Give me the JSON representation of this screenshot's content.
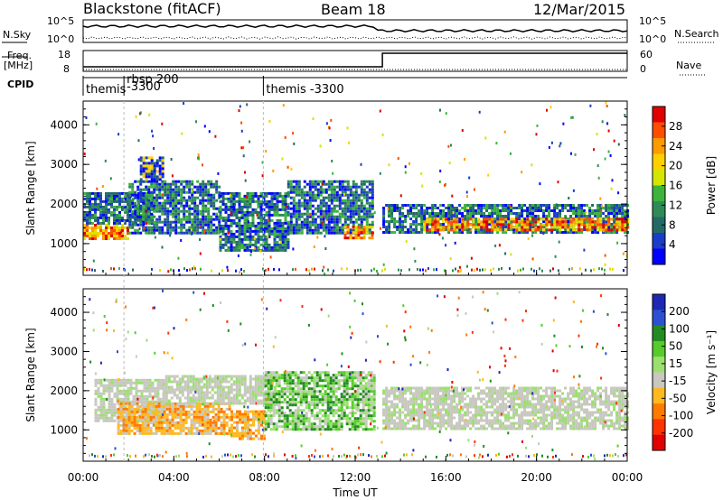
{
  "header": {
    "radar": "Blackstone (fitACF)",
    "beam": "Beam 18",
    "date": "12/Mar/2015"
  },
  "noise_panel": {
    "left_label": "N.Sky",
    "left_ticks": [
      "10^5",
      "10^0"
    ],
    "right_ticks": [
      "10^5",
      "10^0"
    ],
    "right_label": "N.Search"
  },
  "freq_panel": {
    "left_label_top": "Freq.",
    "left_label_bottom": "[MHz]",
    "left_ticks": [
      "18",
      "8"
    ],
    "right_ticks": [
      "60",
      "0"
    ],
    "right_label": "Nave"
  },
  "cpid_panel": {
    "label": "CPID",
    "segments": [
      {
        "start_hour": 0.0,
        "text_lines": [
          "themis"
        ]
      },
      {
        "start_hour": 1.8,
        "text_lines": [
          "rbsp 200",
          "-3300"
        ]
      },
      {
        "start_hour": 7.95,
        "text_lines": [
          "themis -3300"
        ]
      }
    ]
  },
  "chart_data": [
    {
      "type": "heatmap",
      "parameter": "Power",
      "ylabel": "Slant Range [km]",
      "ylim": [
        200,
        4600
      ],
      "yticks": [
        1000,
        2000,
        3000,
        4000
      ],
      "xlim": [
        0,
        24
      ],
      "colorbar": {
        "label": "Power [dB]",
        "ticks": [
          "28",
          "24",
          "20",
          "16",
          "12",
          "8",
          "4"
        ],
        "colors": [
          "#e00000",
          "#ff4d00",
          "#ff9a00",
          "#ffd000",
          "#d4e600",
          "#3cb43c",
          "#2e8b57",
          "#236a66",
          "#1a3cc8",
          "#0000ff"
        ]
      },
      "bands": [
        {
          "hour_start": 0.0,
          "hour_end": 2.0,
          "range_low": 1100,
          "range_high": 1500,
          "level": "strong"
        },
        {
          "hour_start": 0.0,
          "hour_end": 3.0,
          "range_low": 1500,
          "range_high": 2300,
          "level": "medium"
        },
        {
          "hour_start": 2.0,
          "hour_end": 6.0,
          "range_low": 1300,
          "range_high": 2600,
          "level": "medium"
        },
        {
          "hour_start": 2.5,
          "hour_end": 3.5,
          "range_low": 2600,
          "range_high": 3200,
          "level": "weak"
        },
        {
          "hour_start": 6.0,
          "hour_end": 9.0,
          "range_low": 800,
          "range_high": 2300,
          "level": "medium"
        },
        {
          "hour_start": 9.0,
          "hour_end": 12.8,
          "range_low": 1300,
          "range_high": 2600,
          "level": "medium"
        },
        {
          "hour_start": 11.5,
          "hour_end": 12.8,
          "range_low": 1150,
          "range_high": 1450,
          "level": "strong"
        },
        {
          "hour_start": 13.2,
          "hour_end": 24.0,
          "range_low": 1300,
          "range_high": 2000,
          "level": "medium"
        },
        {
          "hour_start": 15.0,
          "hour_end": 24.0,
          "range_low": 1350,
          "range_high": 1650,
          "level": "strong"
        }
      ]
    },
    {
      "type": "heatmap",
      "parameter": "Velocity",
      "ylabel": "Slant Range [km]",
      "ylim": [
        200,
        4600
      ],
      "yticks": [
        1000,
        2000,
        3000,
        4000
      ],
      "xlim": [
        0,
        24
      ],
      "xlabel": "Time UT",
      "xticks": [
        "00:00",
        "04:00",
        "08:00",
        "12:00",
        "16:00",
        "20:00",
        "00:00"
      ],
      "colorbar": {
        "label": "Velocity [m s⁻¹]",
        "ticks": [
          "200",
          "100",
          "50",
          "15",
          "-15",
          "-50",
          "-100",
          "-200"
        ],
        "colors": [
          "#1e28b4",
          "#2d50d2",
          "#228b22",
          "#55cc2a",
          "#9be06e",
          "#c8c8c0",
          "#ffb820",
          "#ff7a00",
          "#ff3300",
          "#e00000"
        ]
      },
      "bands": [
        {
          "hour_start": 0.5,
          "hour_end": 3.5,
          "range_low": 1200,
          "range_high": 2300,
          "level": "ground"
        },
        {
          "hour_start": 1.5,
          "hour_end": 6.5,
          "range_low": 900,
          "range_high": 1700,
          "level": "negative"
        },
        {
          "hour_start": 6.5,
          "hour_end": 8.0,
          "range_low": 800,
          "range_high": 1500,
          "level": "negative"
        },
        {
          "hour_start": 3.5,
          "hour_end": 8.5,
          "range_low": 1700,
          "range_high": 2400,
          "level": "ground"
        },
        {
          "hour_start": 8.0,
          "hour_end": 12.8,
          "range_low": 1000,
          "range_high": 2500,
          "level": "positive"
        },
        {
          "hour_start": 13.2,
          "hour_end": 24.0,
          "range_low": 1000,
          "range_high": 2100,
          "level": "ground"
        }
      ]
    }
  ]
}
